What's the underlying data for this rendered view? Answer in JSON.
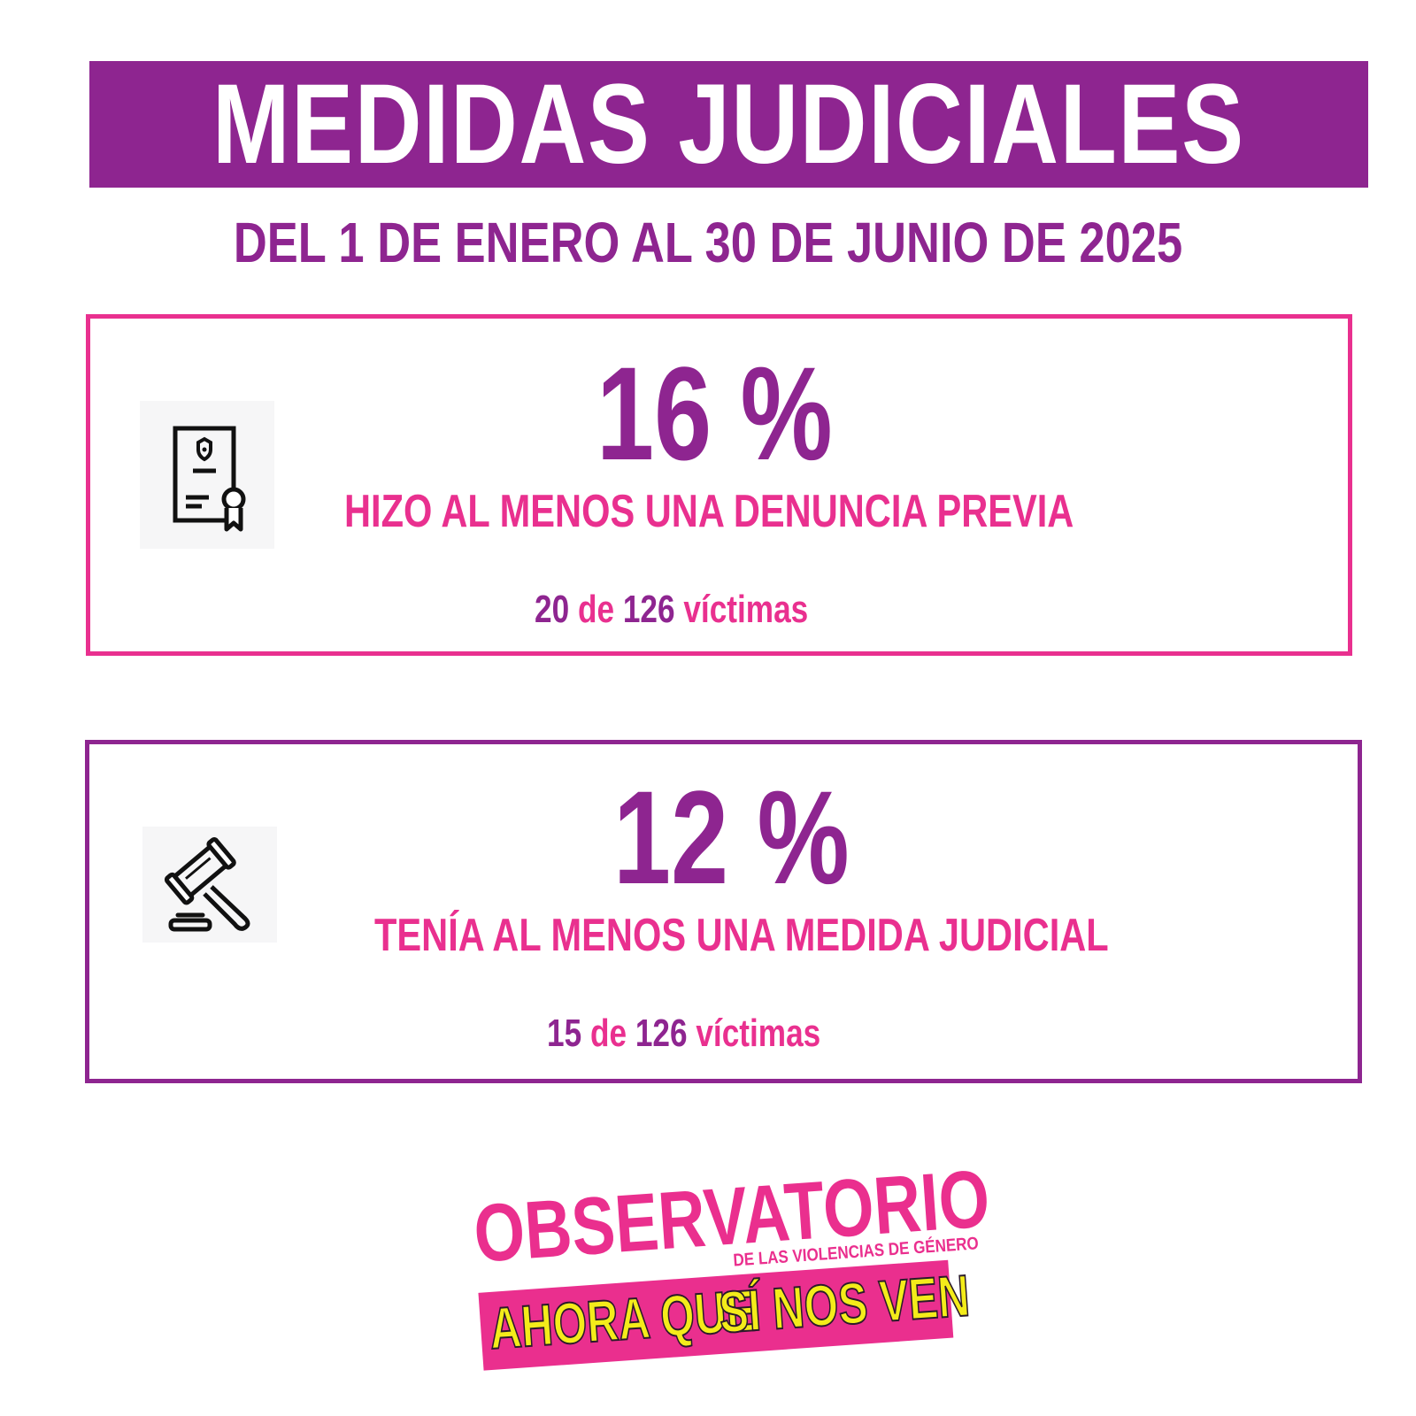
{
  "header": {
    "title": "MEDIDAS JUDICIALES",
    "subtitle": "DEL 1 DE ENERO AL 30 DE JUNIO DE 2025"
  },
  "cards": [
    {
      "icon": "certificate-document-icon",
      "percentage": "16 %",
      "description": "HIZO AL MENOS UNA DENUNCIA PREVIA",
      "count": "20",
      "of": "de",
      "total": "126",
      "unit": "víctimas"
    },
    {
      "icon": "gavel-icon",
      "percentage": "12 %",
      "description": "TENÍA AL MENOS UNA MEDIDA JUDICIAL",
      "count": "15",
      "of": "de",
      "total": "126",
      "unit": "víctimas"
    }
  ],
  "logo": {
    "main": "OBSERVATORIO",
    "sub": "DE LAS VIOLENCIAS DE GÉNERO",
    "tagline_a": "AHORA QUE",
    "tagline_b": "SÍ NOS VEN"
  },
  "colors": {
    "purple": "#8e2590",
    "pink": "#e9308f",
    "yellow": "#f4ec1a"
  }
}
